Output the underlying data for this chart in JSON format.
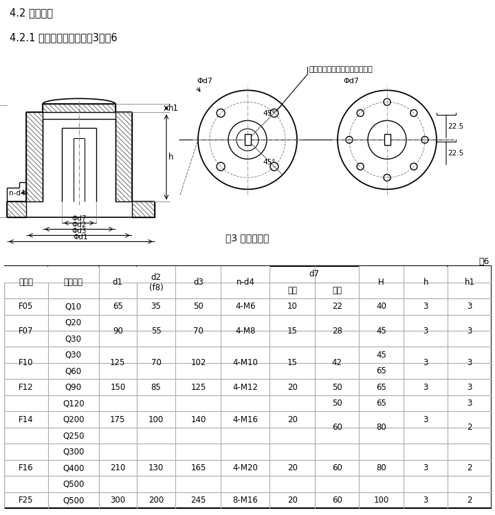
{
  "title1": "4.2 连接尺寸",
  "title2": "4.2.1 连接型式和尺寸见图3、表6",
  "fig3_caption": "图3 连接尺寸图",
  "biao6_label": "表6",
  "line_color": "#aaaaaa",
  "text_color": "#000000",
  "font_size": 9,
  "title_font_size": 10,
  "groups": [
    {
      "flangehao": "F05",
      "dianzhuang": [
        "Q10"
      ],
      "d1": "65",
      "d2": "35",
      "d3": "50",
      "nd4": "4-M6",
      "d7y": "10",
      "d7z": [
        "22"
      ],
      "H": [
        "40"
      ],
      "h": "3",
      "h1": [
        "3"
      ]
    },
    {
      "flangehao": "F07",
      "dianzhuang": [
        "Q20",
        "Q30"
      ],
      "d1": "90",
      "d2": "55",
      "d3": "70",
      "nd4": "4-M8",
      "d7y": "15",
      "d7z": [
        "28"
      ],
      "H": [
        "45"
      ],
      "h": "3",
      "h1": [
        "3"
      ]
    },
    {
      "flangehao": "F10",
      "dianzhuang": [
        "Q30",
        "Q60"
      ],
      "d1": "125",
      "d2": "70",
      "d3": "102",
      "nd4": "4-M10",
      "d7y": "15",
      "d7z": [
        "42"
      ],
      "H": [
        "45",
        "65"
      ],
      "h": "3",
      "h1": [
        "3"
      ]
    },
    {
      "flangehao": "F12",
      "dianzhuang": [
        "Q90"
      ],
      "d1": "150",
      "d2": "85",
      "d3": "125",
      "nd4": "4-M12",
      "d7y": "20",
      "d7z": [
        "50"
      ],
      "H": [
        "65"
      ],
      "h": "3",
      "h1": [
        "3"
      ]
    },
    {
      "flangehao": "F14",
      "dianzhuang": [
        "Q120",
        "Q200",
        "Q250"
      ],
      "d1": "175",
      "d2": "100",
      "d3": "140",
      "nd4": "4-M16",
      "d7y": "20",
      "d7z": [
        "50",
        "60"
      ],
      "H": [
        "65",
        "80"
      ],
      "h": "3",
      "h1": [
        "3",
        "2"
      ]
    },
    {
      "flangehao": "F16",
      "dianzhuang": [
        "Q300",
        "Q400",
        "Q500"
      ],
      "d1": "210",
      "d2": "130",
      "d3": "165",
      "nd4": "4-M20",
      "d7y": "20",
      "d7z": [
        "60"
      ],
      "H": [
        "80"
      ],
      "h": "3",
      "h1": [
        "2"
      ]
    },
    {
      "flangehao": "F25",
      "dianzhuang": [
        "Q500"
      ],
      "d1": "300",
      "d2": "200",
      "d3": "245",
      "nd4": "8-M16",
      "d7y": "20",
      "d7z": [
        "60"
      ],
      "H": [
        "100"
      ],
      "h": "3",
      "h1": [
        "2"
      ]
    }
  ]
}
